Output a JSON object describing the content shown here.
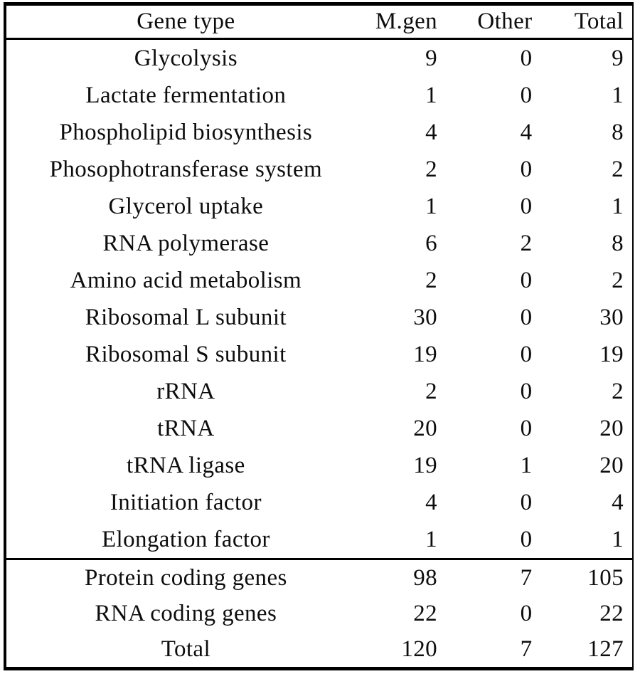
{
  "chart_data": {
    "type": "table",
    "title": "",
    "columns": [
      "Gene type",
      "M.gen",
      "Other",
      "Total"
    ],
    "rows": [
      [
        "Glycolysis",
        9,
        0,
        9
      ],
      [
        "Lactate fermentation",
        1,
        0,
        1
      ],
      [
        "Phospholipid biosynthesis",
        4,
        4,
        8
      ],
      [
        "Phosophotransferase system",
        2,
        0,
        2
      ],
      [
        "Glycerol uptake",
        1,
        0,
        1
      ],
      [
        "RNA polymerase",
        6,
        2,
        8
      ],
      [
        "Amino acid metabolism",
        2,
        0,
        2
      ],
      [
        "Ribosomal L subunit",
        30,
        0,
        30
      ],
      [
        "Ribosomal S subunit",
        19,
        0,
        19
      ],
      [
        "rRNA",
        2,
        0,
        2
      ],
      [
        "tRNA",
        20,
        0,
        20
      ],
      [
        "tRNA ligase",
        19,
        1,
        20
      ],
      [
        "Initiation factor",
        4,
        0,
        4
      ],
      [
        "Elongation factor",
        1,
        0,
        1
      ]
    ],
    "summary_rows": [
      [
        "Protein coding genes",
        98,
        7,
        105
      ],
      [
        "RNA coding genes",
        22,
        0,
        22
      ],
      [
        "Total",
        120,
        7,
        127
      ]
    ],
    "layout_hints": {
      "first_column_align": "center",
      "numeric_columns_align": "right",
      "rules": [
        "top",
        "below-header",
        "above-summary",
        "bottom",
        "left-edge",
        "right-edge"
      ]
    }
  },
  "colors": {
    "border": "#000000",
    "text": "#0d0d0d",
    "background": "#ffffff"
  }
}
